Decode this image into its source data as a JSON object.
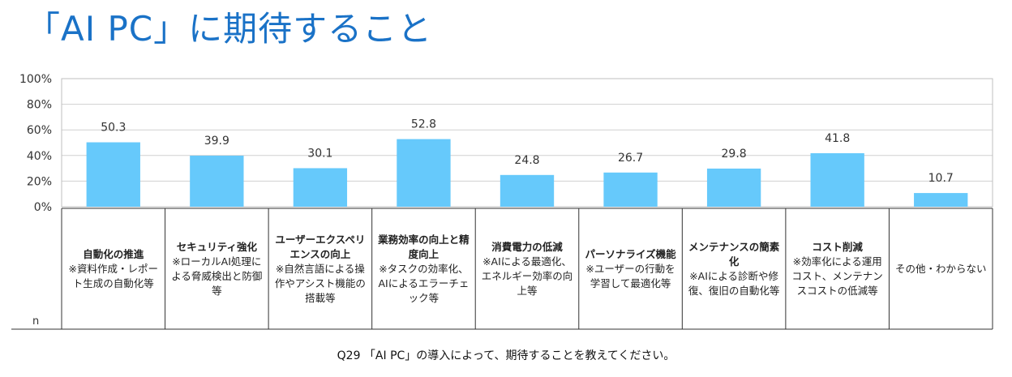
{
  "title": "「AI PC」に期待すること",
  "question": "Q29 「AI PC」の導入によって、期待することを教えてください。",
  "n_label": "n",
  "colors": {
    "bar": "#66c9fb",
    "title": "#1a72c7",
    "grid": "#d0d0d0"
  },
  "chart_data": {
    "type": "bar",
    "categories": [
      {
        "head": "自動化の推進",
        "note": "※資料作成・レポート生成の自動化等"
      },
      {
        "head": "セキュリティ強化",
        "note": "※ローカルAI処理による脅威検出と防御等"
      },
      {
        "head": "ユーザーエクスペリエンスの向上",
        "note": "※自然言語による操作やアシスト機能の搭載等"
      },
      {
        "head": "業務効率の向上と精度向上",
        "note": "※タスクの効率化、AIによるエラーチェック等"
      },
      {
        "head": "消費電力の低減",
        "note": "※AIによる最適化、エネルギー効率の向上等"
      },
      {
        "head": "パーソナライズ機能",
        "note": "※ユーザーの行動を学習して最適化等"
      },
      {
        "head": "メンテナンスの簡素化",
        "note": "※AIによる診断や修復、復旧の自動化等"
      },
      {
        "head": "コスト削減",
        "note": "※効率化による運用コスト、メンテナンスコストの低減等"
      },
      {
        "head": "",
        "note": "その他・わからない"
      }
    ],
    "values": [
      50.3,
      39.9,
      30.1,
      52.8,
      24.8,
      26.7,
      29.8,
      41.8,
      10.7
    ],
    "value_labels": [
      "50.3",
      "39.9",
      "30.1",
      "52.8",
      "24.8",
      "26.7",
      "29.8",
      "41.8",
      "10.7"
    ],
    "yticks": [
      "0%",
      "20%",
      "40%",
      "60%",
      "80%",
      "100%"
    ],
    "ylim": [
      0,
      100
    ],
    "grid": true
  }
}
